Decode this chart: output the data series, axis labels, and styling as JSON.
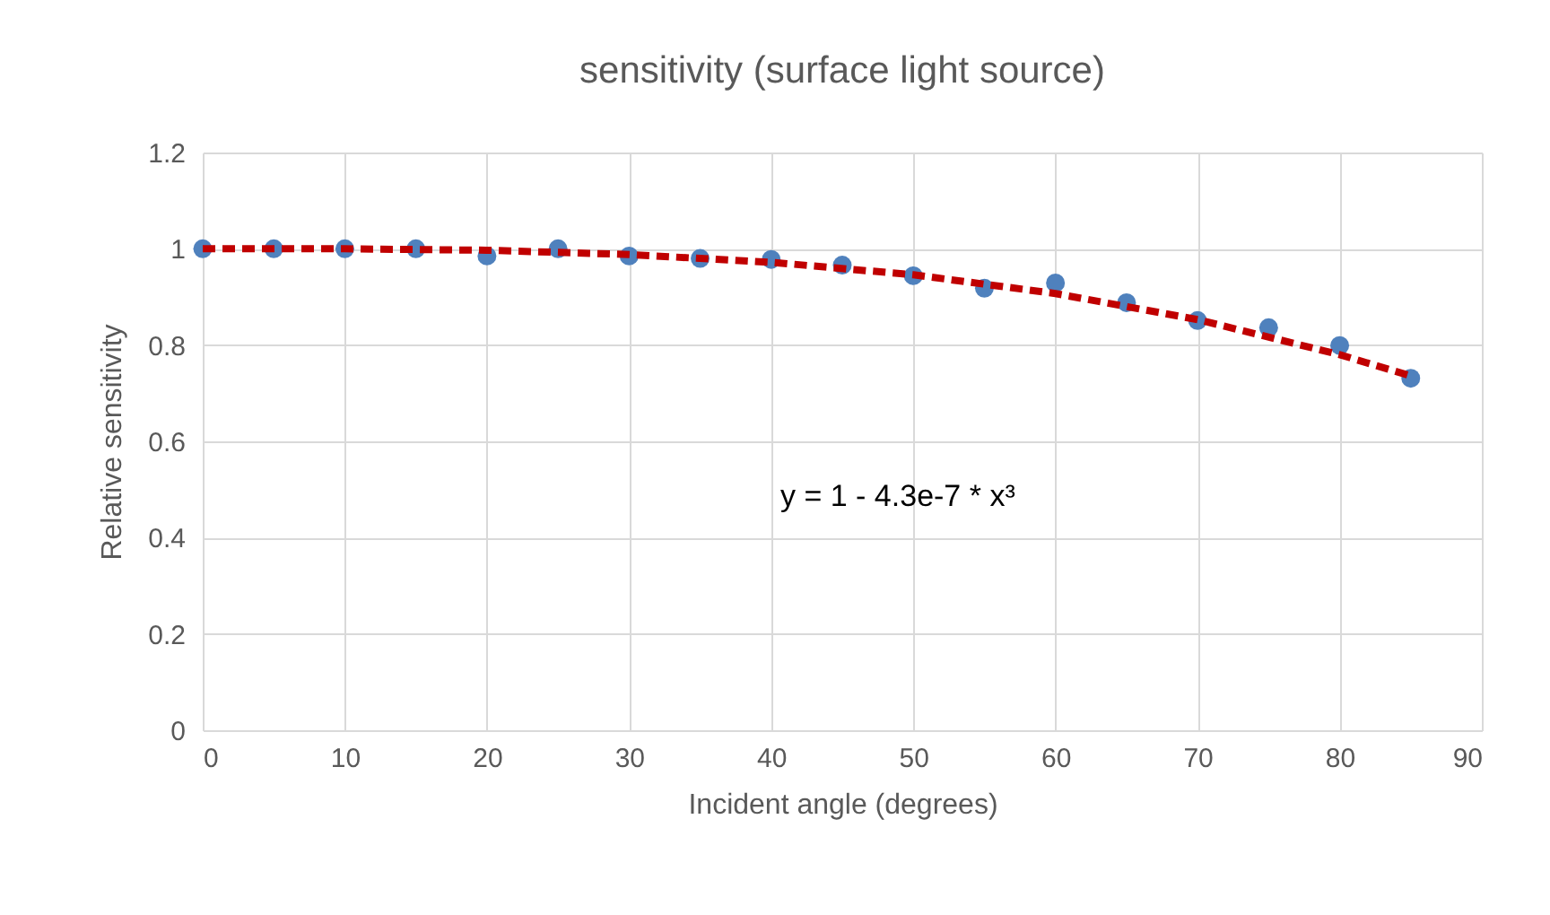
{
  "chart_data": {
    "type": "scatter",
    "title": "sensitivity (surface light source)",
    "xlabel": "Incident angle (degrees)",
    "ylabel": "Relative sensitivity",
    "xlim": [
      0,
      90
    ],
    "xticks": [
      0,
      10,
      20,
      30,
      40,
      50,
      60,
      70,
      80,
      90
    ],
    "ylim": [
      0,
      1.2
    ],
    "yticks": [
      0,
      0.2,
      0.4,
      0.6,
      0.8,
      1,
      1.2
    ],
    "grid": true,
    "series": [
      {
        "marker": "circle",
        "color": "#4f81bd",
        "x": [
          0,
          5,
          10,
          15,
          20,
          25,
          30,
          35,
          40,
          45,
          50,
          55,
          60,
          65,
          70,
          75,
          80,
          85
        ],
        "values": [
          1,
          1,
          1,
          1,
          0.985,
          1,
          0.985,
          0.98,
          0.978,
          0.966,
          0.944,
          0.918,
          0.929,
          0.888,
          0.851,
          0.836,
          0.799,
          0.731
        ]
      },
      {
        "type": "line",
        "color": "#c00000",
        "line_style": "dashed",
        "marker": "none",
        "x": [
          0,
          10,
          20,
          30,
          40,
          50,
          60,
          70,
          80,
          85
        ],
        "values": [
          1,
          1,
          0.997,
          0.988,
          0.972,
          0.946,
          0.907,
          0.853,
          0.78,
          0.736
        ]
      }
    ],
    "annotations": [
      "y = 1 - 4.3e-7 * x³"
    ]
  }
}
